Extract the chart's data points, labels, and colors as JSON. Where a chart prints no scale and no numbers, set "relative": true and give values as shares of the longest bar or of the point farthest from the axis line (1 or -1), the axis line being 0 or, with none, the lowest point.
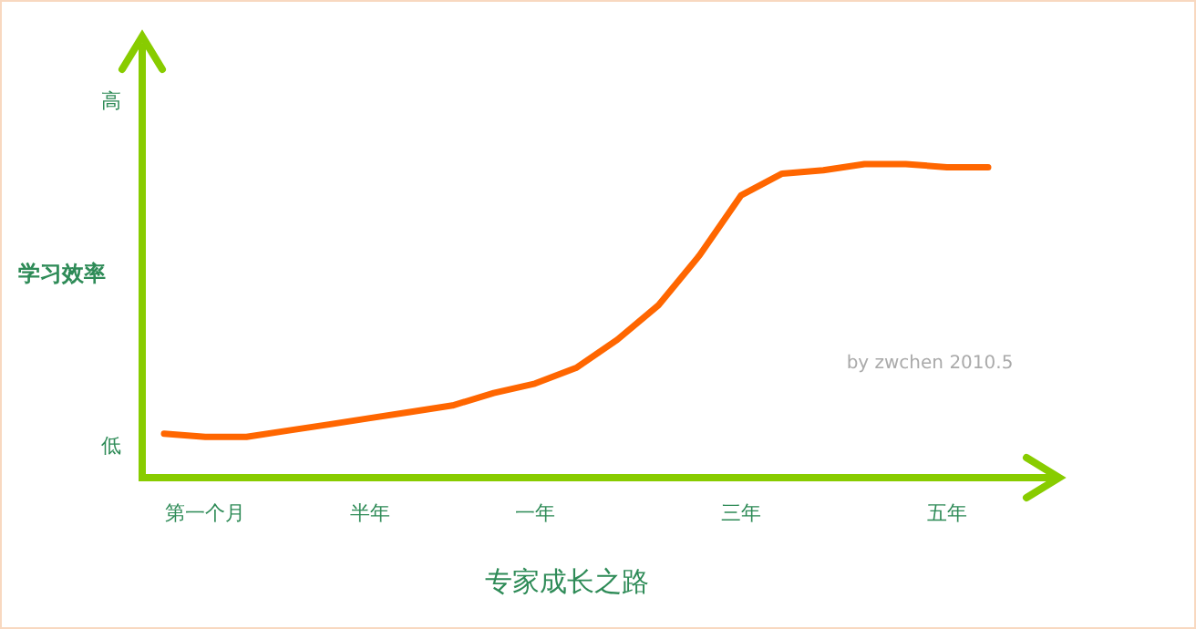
{
  "chart_data": {
    "type": "line",
    "relative": true,
    "xlabel": "专家成长之路",
    "ylabel": "学习效率",
    "categories": [
      null,
      "第一个月",
      null,
      null,
      null,
      "半年",
      null,
      null,
      null,
      "一年",
      null,
      null,
      null,
      null,
      "三年",
      null,
      null,
      null,
      null,
      "五年",
      null
    ],
    "series": [
      {
        "color": "#ff6600",
        "values": [
          0.14,
          0.13,
          0.13,
          0.15,
          0.17,
          0.19,
          0.21,
          0.23,
          0.27,
          0.3,
          0.35,
          0.44,
          0.55,
          0.71,
          0.9,
          0.97,
          0.98,
          1,
          1,
          0.99,
          0.99
        ]
      }
    ],
    "annotations": [
      "高",
      "低",
      "by zwchen 2010.5"
    ],
    "line_style": "solid"
  }
}
